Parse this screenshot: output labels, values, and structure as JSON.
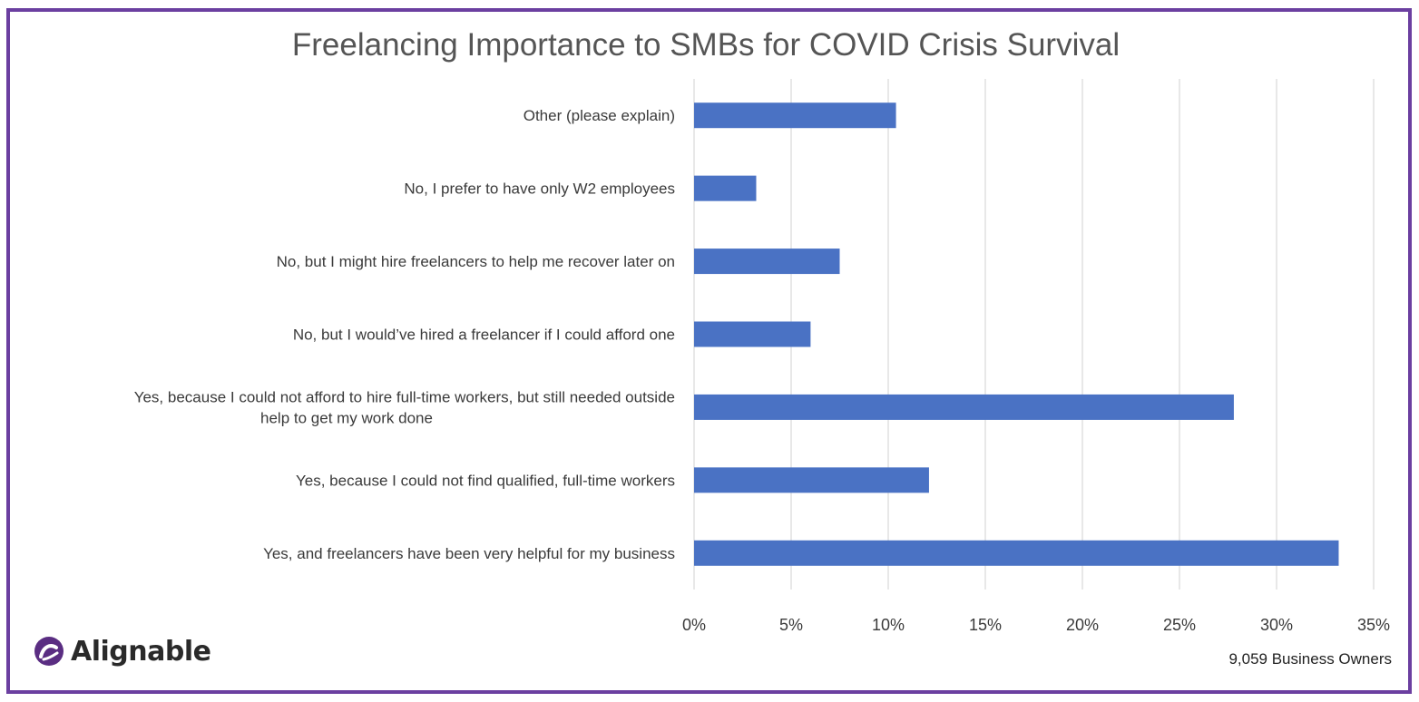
{
  "chart_data": {
    "type": "bar",
    "orientation": "horizontal",
    "title": "Freelancing Importance to SMBs for COVID Crisis Survival",
    "xlabel": "",
    "ylabel": "",
    "categories": [
      "Other (please explain)",
      "No, I prefer to have only W2 employees",
      "No, but I might hire freelancers to help me recover later on",
      "No, but I would’ve hired a freelancer if I could afford one",
      "Yes, because I could not afford to hire full-time workers, but still needed outside help to get my work done",
      "Yes, because I could not find qualified, full-time workers",
      "Yes, and freelancers have been very helpful for my business"
    ],
    "category_lines": [
      [
        "Other (please explain)"
      ],
      [
        "No, I prefer to have only W2 employees"
      ],
      [
        "No, but I might hire freelancers to help me recover later on"
      ],
      [
        "No, but I would’ve hired a freelancer if I could afford one"
      ],
      [
        "Yes, because I could not afford to hire full-time workers, but still needed outside",
        "help to get my work done"
      ],
      [
        "Yes, because I could not find qualified, full-time workers"
      ],
      [
        "Yes, and freelancers have been very helpful for my business"
      ]
    ],
    "values": [
      10.4,
      3.2,
      7.5,
      6.0,
      27.8,
      12.1,
      33.2
    ],
    "value_unit": "percent",
    "xlim": [
      0,
      35
    ],
    "ticks": [
      0,
      5,
      10,
      15,
      20,
      25,
      30,
      35
    ],
    "tick_labels": [
      "0%",
      "5%",
      "10%",
      "15%",
      "20%",
      "25%",
      "30%",
      "35%"
    ],
    "grid": "vertical",
    "legend": "none",
    "bar_color": "#4a72c4",
    "grid_color": "#d9d9d9"
  },
  "branding": {
    "logo_text": "Alignable",
    "logo_icon": "alignable-logo-icon",
    "logo_color": "#5a2d82"
  },
  "footer": {
    "source_note": "9,059 Business Owners"
  },
  "frame_color": "#6b3fa0"
}
